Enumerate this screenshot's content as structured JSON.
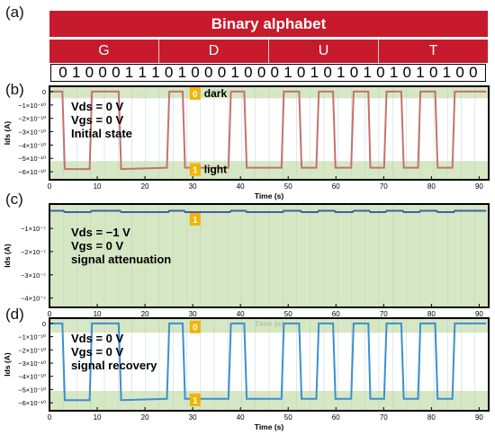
{
  "panel_labels": [
    "(a)",
    "(b)",
    "(c)",
    "(d)"
  ],
  "alphabet": {
    "title": "Binary alphabet",
    "letters": [
      "G",
      "D",
      "U",
      "T"
    ],
    "bits": [
      "0",
      "1",
      "0",
      "0",
      "0",
      "1",
      "1",
      "1",
      "0",
      "1",
      "0",
      "0",
      "0",
      "1",
      "0",
      "0",
      "0",
      "1",
      "0",
      "1",
      "0",
      "1",
      "0",
      "1",
      "0",
      "1",
      "0",
      "1",
      "0",
      "1",
      "0",
      "0"
    ]
  },
  "colors": {
    "banner": "#c71a2c",
    "trace_b": "#c4726f",
    "trace_d": "#3c8fd2",
    "trace_c": "#3e5fa8",
    "band": "#cfe3b8",
    "tag": "#f2b400"
  },
  "chart_data": [
    {
      "type": "line",
      "panel": "(b)",
      "xlabel": "Time (s)",
      "ylabel": "Ids (A)",
      "xlim": [
        0,
        92
      ],
      "ylim": [
        -6.6e-10,
        4e-11
      ],
      "xticks": [
        0,
        10,
        20,
        30,
        40,
        50,
        60,
        70,
        80,
        90
      ],
      "yticks": [
        0,
        -1e-10,
        -2e-10,
        -3e-10,
        -4e-10,
        -5e-10,
        -6e-10
      ],
      "ytick_labels": [
        "0",
        "−1×10⁻¹⁰",
        "−2×10⁻¹⁰",
        "−3×10⁻¹⁰",
        "−4×10⁻¹⁰",
        "−5×10⁻¹⁰",
        "−6×10⁻¹⁰"
      ],
      "bands": [
        {
          "tag": "0",
          "label": "dark",
          "from": -5e-11,
          "to": 4e-11
        },
        {
          "tag": "1",
          "label": "light",
          "from": -6.6e-10,
          "to": -5.2e-10
        }
      ],
      "annotations": [
        "Vds = 0 V",
        "Vgs = 0 V",
        "Initial state"
      ],
      "x": [
        0,
        2.7,
        3.2,
        8.4,
        8.9,
        14.5,
        15.0,
        24.6,
        25.1,
        27.9,
        28.4,
        37.5,
        38.0,
        40.8,
        41.3,
        48.6,
        49.1,
        52.3,
        52.8,
        55.9,
        56.4,
        59.4,
        59.9,
        63.2,
        63.7,
        66.8,
        67.2,
        70.1,
        70.6,
        73.7,
        74.2,
        77.2,
        77.7,
        80.8,
        81.3,
        84.4,
        84.9,
        91.5
      ],
      "y": [
        0,
        0,
        -5.8e-10,
        -5.8e-10,
        0,
        0,
        -5.8e-10,
        -5.7e-10,
        0,
        0,
        -5.7e-10,
        -5.7e-10,
        0,
        0,
        -5.7e-10,
        -5.7e-10,
        0,
        0,
        -5.7e-10,
        -5.7e-10,
        0,
        0,
        -5.7e-10,
        -5.7e-10,
        0,
        0,
        -5.7e-10,
        -5.7e-10,
        0,
        0,
        -5.7e-10,
        -5.7e-10,
        0,
        0,
        -5.7e-10,
        -5.7e-10,
        0,
        0
      ]
    },
    {
      "type": "line",
      "panel": "(c)",
      "xlabel": "Time (s)",
      "ylabel": "Ids (A)",
      "xlim": [
        0,
        92
      ],
      "ylim": [
        -4.4e-07,
        5e-09
      ],
      "xticks": [
        0,
        10,
        20,
        30,
        40,
        50,
        60,
        70,
        80,
        90
      ],
      "yticks": [
        -1e-07,
        -2e-07,
        -3e-07,
        -4e-07
      ],
      "ytick_labels": [
        "−1×10⁻⁷",
        "−2×10⁻⁷",
        "−3×10⁻⁷",
        "−4×10⁻⁷"
      ],
      "bands": [
        {
          "tag": "1",
          "label": "",
          "from": -4.4e-07,
          "to": 5e-09
        }
      ],
      "annotations": [
        "Vds = −1 V",
        "Vgs = 0 V",
        "signal attenuation"
      ],
      "x": [
        0,
        2.9,
        3.2,
        8.6,
        8.9,
        14.8,
        15.0,
        24.9,
        25.1,
        28.2,
        28.4,
        37.8,
        38.0,
        41.1,
        41.3,
        48.9,
        49.1,
        52.6,
        52.8,
        56.2,
        56.4,
        59.7,
        59.9,
        63.5,
        63.7,
        67.0,
        67.2,
        70.4,
        70.6,
        74.0,
        74.2,
        77.5,
        77.7,
        81.1,
        81.3,
        84.7,
        84.9,
        91.5
      ],
      "y": [
        -2.4e-08,
        -2.4e-08,
        -3e-08,
        -3e-08,
        -2.4e-08,
        -2.4e-08,
        -3e-08,
        -3e-08,
        -2.4e-08,
        -2.4e-08,
        -3e-08,
        -3e-08,
        -2.4e-08,
        -2.4e-08,
        -3e-08,
        -3e-08,
        -2.4e-08,
        -2.4e-08,
        -3e-08,
        -3e-08,
        -2.4e-08,
        -2.4e-08,
        -3e-08,
        -3e-08,
        -2.4e-08,
        -2.4e-08,
        -3e-08,
        -3e-08,
        -2.4e-08,
        -2.4e-08,
        -3e-08,
        -3e-08,
        -2.4e-08,
        -2.4e-08,
        -3e-08,
        -3e-08,
        -2.4e-08,
        -2.4e-08
      ]
    },
    {
      "type": "line",
      "panel": "(d)",
      "xlabel": "Time (s)",
      "ylabel": "Ids (A)",
      "xlim": [
        0,
        92
      ],
      "ylim": [
        -6.6e-10,
        4e-11
      ],
      "xticks": [
        0,
        10,
        20,
        30,
        40,
        50,
        60,
        70,
        80,
        90
      ],
      "yticks": [
        0,
        -1e-10,
        -2e-10,
        -3e-10,
        -4e-10,
        -5e-10,
        -6e-10
      ],
      "ytick_labels": [
        "0",
        "−1×10⁻¹⁰",
        "−2×10⁻¹⁰",
        "−3×10⁻¹⁰",
        "−4×10⁻¹⁰",
        "−5×10⁻¹⁰",
        "−6×10⁻¹⁰"
      ],
      "bands": [
        {
          "tag": "0",
          "label": "",
          "from": -7e-11,
          "to": 4e-11
        },
        {
          "tag": "1",
          "label": "",
          "from": -6.6e-10,
          "to": -5.1e-10
        }
      ],
      "annotations": [
        "Vds = 0 V",
        "Vgs = 0 V",
        "signal recovery"
      ],
      "x": [
        0,
        2.7,
        3.2,
        8.4,
        8.9,
        14.5,
        15.0,
        24.6,
        25.1,
        27.9,
        28.4,
        37.5,
        38.0,
        40.8,
        41.3,
        48.6,
        49.1,
        52.3,
        52.8,
        55.9,
        56.4,
        59.4,
        59.9,
        63.2,
        63.7,
        66.8,
        67.2,
        70.1,
        70.6,
        73.7,
        74.2,
        77.2,
        77.7,
        80.8,
        81.3,
        84.4,
        84.9,
        91.5
      ],
      "y": [
        0,
        0,
        -5.8e-10,
        -5.8e-10,
        0,
        0,
        -5.8e-10,
        -5.7e-10,
        0,
        0,
        -5.7e-10,
        -5.7e-10,
        0,
        0,
        -5.7e-10,
        -5.7e-10,
        0,
        0,
        -5.7e-10,
        -5.7e-10,
        0,
        0,
        -5.7e-10,
        -5.7e-10,
        0,
        0,
        -5.7e-10,
        -5.7e-10,
        0,
        0,
        -5.7e-10,
        -5.7e-10,
        0,
        0,
        -5.7e-10,
        -5.7e-10,
        0,
        0
      ]
    }
  ]
}
